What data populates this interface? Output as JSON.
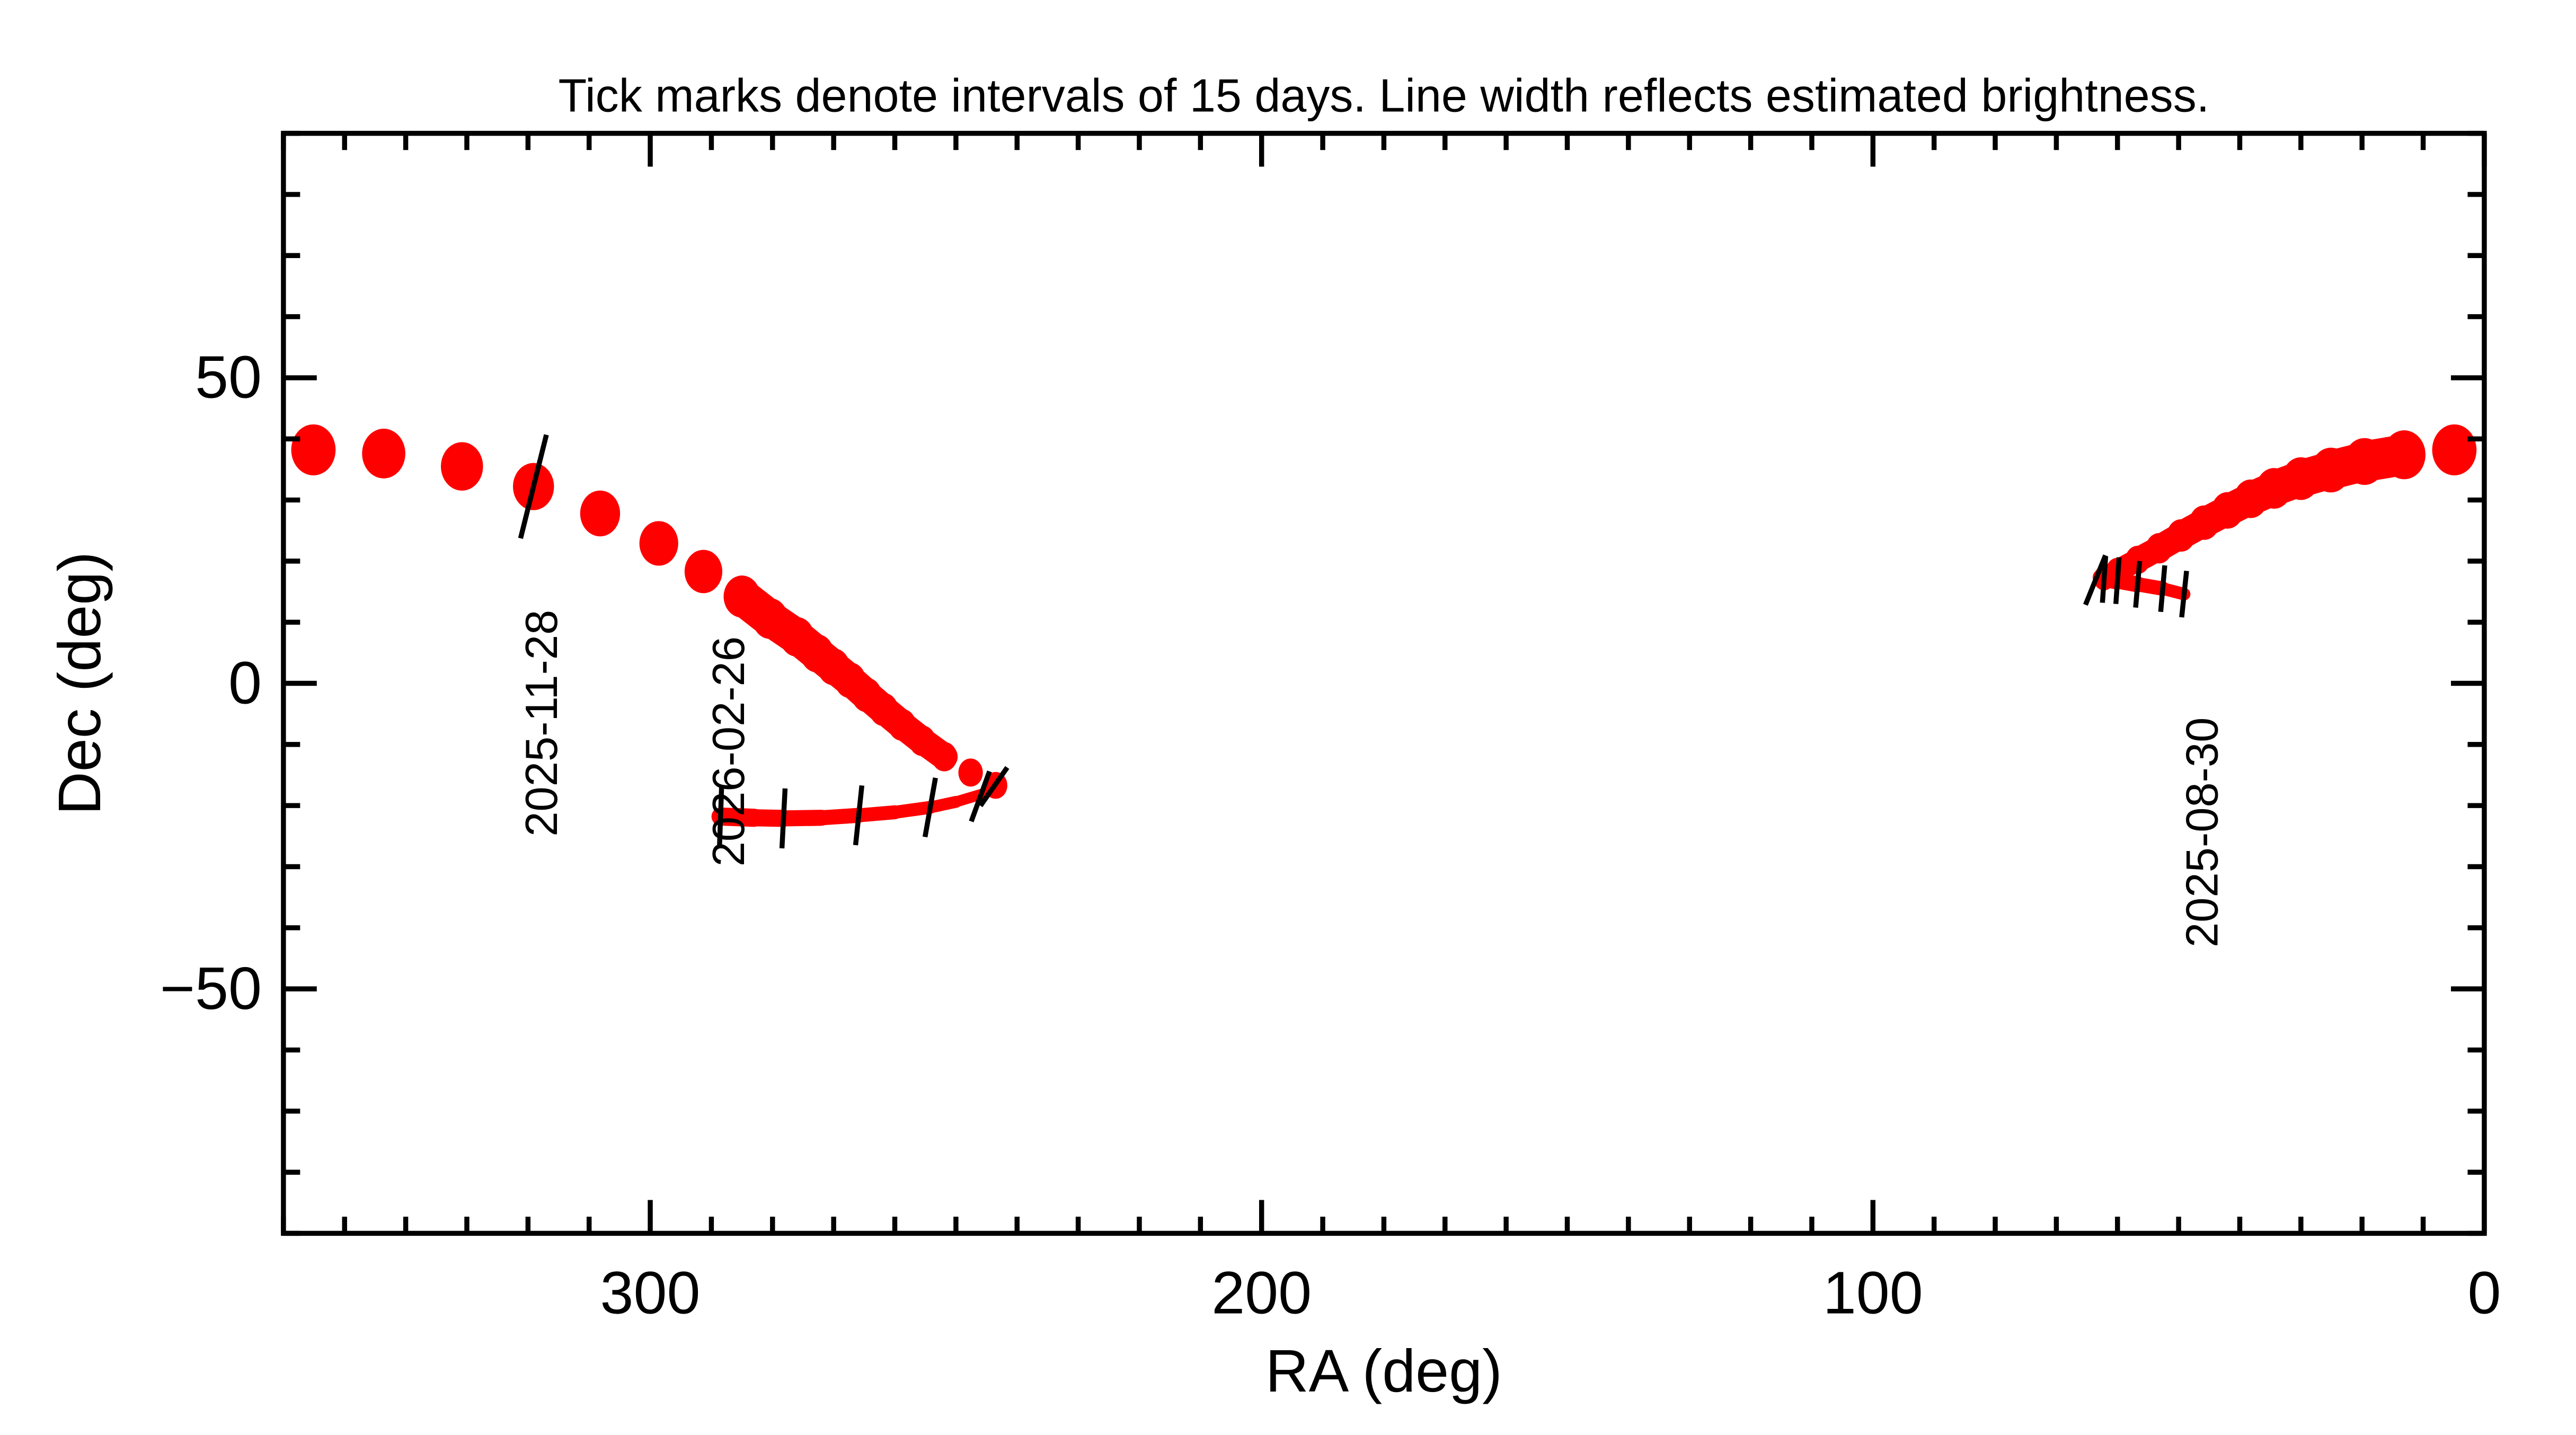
{
  "chart_data": {
    "type": "line",
    "title": "Tick marks denote intervals of 15 days.  Line width reflects estimated brightness.",
    "xlabel": "RA (deg)",
    "ylabel": "Dec (deg)",
    "xlim": [
      360,
      0
    ],
    "ylim": [
      -90,
      90
    ],
    "x_reversed": true,
    "grid": false,
    "x_major_ticks": [
      300,
      200,
      100,
      0
    ],
    "x_tick_labels": [
      "300",
      "200",
      "100",
      "0"
    ],
    "y_major_ticks": [
      50,
      0,
      -50
    ],
    "y_tick_labels": [
      "50",
      "0",
      "−50"
    ],
    "x_minor_step": 10,
    "y_minor_step": 10,
    "track_color": "#ff0000",
    "tick_color": "#000000",
    "track": [
      {
        "style": "line",
        "brightness": [
          0.25,
          0.4
        ],
        "points": [
          [
            49.1,
            14.6
          ],
          [
            52.6,
            15.5
          ],
          [
            56.7,
            16.2
          ],
          [
            60.0,
            16.8
          ],
          [
            62.6,
            17.3
          ]
        ]
      },
      {
        "style": "dots",
        "brightness": [
          0.45,
          0.95
        ],
        "points": [
          [
            62.2,
            17.2
          ],
          [
            60.0,
            18.4
          ],
          [
            56.7,
            20.2
          ],
          [
            53.2,
            22.1
          ],
          [
            49.6,
            24.2
          ],
          [
            45.8,
            26.3
          ],
          [
            42.0,
            28.3
          ],
          [
            38.2,
            30.2
          ],
          [
            34.4,
            31.9
          ],
          [
            30.0,
            33.5
          ],
          [
            25.1,
            34.9
          ],
          [
            19.6,
            36.3
          ],
          [
            13.1,
            37.4
          ],
          [
            4.9,
            38.2
          ]
        ]
      },
      {
        "style": "dots",
        "brightness": [
          0.95,
          0.5
        ],
        "points": [
          [
            355.1,
            38.2
          ],
          [
            343.6,
            37.6
          ],
          [
            330.8,
            35.5
          ],
          [
            319.1,
            32.2
          ],
          [
            308.2,
            27.8
          ],
          [
            298.6,
            22.9
          ],
          [
            291.3,
            18.3
          ],
          [
            285.0,
            14.2
          ],
          [
            280.4,
            10.6
          ],
          [
            276.0,
            7.6
          ],
          [
            272.7,
            4.9
          ],
          [
            270.0,
            2.7
          ],
          [
            267.3,
            0.5
          ],
          [
            264.6,
            -1.9
          ],
          [
            261.8,
            -4.3
          ],
          [
            258.8,
            -6.8
          ],
          [
            255.5,
            -9.4
          ],
          [
            251.9,
            -12.0
          ],
          [
            247.6,
            -14.6
          ],
          [
            243.5,
            -16.7
          ]
        ]
      },
      {
        "style": "line",
        "brightness": [
          0.2,
          0.4
        ],
        "points": [
          [
            243.5,
            -16.7
          ],
          [
            246.0,
            -18.2
          ],
          [
            250.0,
            -19.4
          ],
          [
            254.2,
            -20.3
          ],
          [
            260.0,
            -21.1
          ],
          [
            265.9,
            -21.6
          ],
          [
            272.0,
            -22.0
          ],
          [
            278.2,
            -22.1
          ],
          [
            283.0,
            -22.0
          ],
          [
            288.5,
            -21.8
          ]
        ]
      }
    ],
    "interval_ticks": [
      [
        49.1,
        14.6
      ],
      [
        52.6,
        15.5
      ],
      [
        56.7,
        16.2
      ],
      [
        60.0,
        16.8
      ],
      [
        62.2,
        17.0
      ],
      [
        63.6,
        16.9
      ],
      [
        319.1,
        32.2
      ],
      [
        243.8,
        -16.9
      ],
      [
        246.0,
        -18.5
      ],
      [
        254.2,
        -20.3
      ],
      [
        265.9,
        -21.6
      ],
      [
        278.2,
        -22.1
      ],
      [
        288.5,
        -21.8
      ]
    ],
    "date_labels": [
      {
        "text": "2025-08-30",
        "ra": 49.1,
        "dec": 14.6
      },
      {
        "text": "2025-11-28",
        "ra": 319.1,
        "dec": 32.2
      },
      {
        "text": "2026-02-26",
        "ra": 288.5,
        "dec": -21.8
      }
    ]
  }
}
